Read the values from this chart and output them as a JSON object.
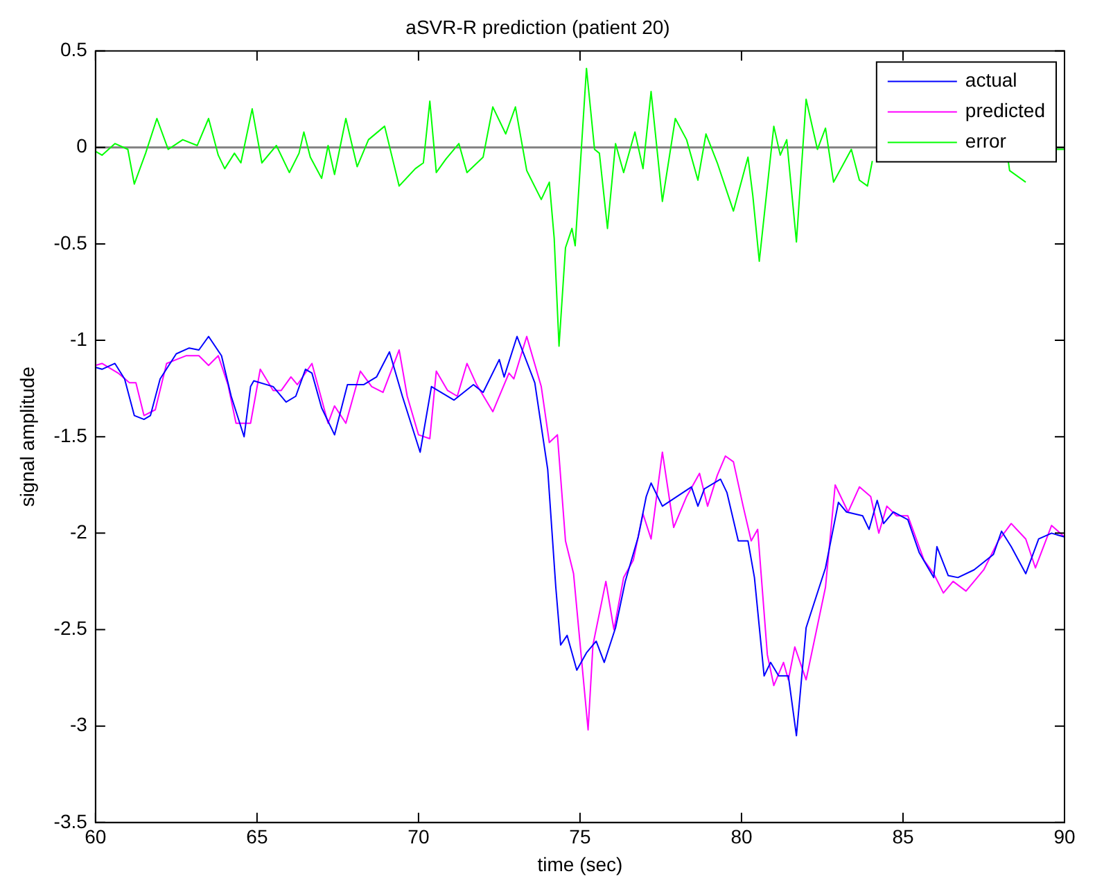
{
  "chart_data": {
    "type": "line",
    "title": "aSVR-R prediction (patient 20)",
    "xlabel": "time (sec)",
    "ylabel": "signal amplitude",
    "xlim": [
      60,
      90
    ],
    "xticks": [
      60,
      65,
      70,
      75,
      80,
      85,
      90
    ],
    "ylim": [
      -3.5,
      0.5
    ],
    "yticks": [
      -3.5,
      -3,
      -2.5,
      -2,
      -1.5,
      -1,
      -0.5,
      0,
      0.5
    ],
    "grid": false,
    "legend": "top right",
    "marker": "none",
    "line_style": "solid",
    "ref_lines": [
      {
        "axis": "y",
        "value": 0,
        "label": null,
        "color": "#808080"
      }
    ],
    "series": [
      {
        "name": "actual",
        "color": "#0000ff",
        "x": [
          60,
          60.2,
          60.6,
          60.9,
          61.2,
          61.5,
          61.7,
          62.0,
          62.5,
          62.9,
          63.2,
          63.5,
          63.9,
          64.2,
          64.6,
          64.8,
          64.9,
          65.5,
          65.9,
          66.2,
          66.5,
          66.7,
          67.0,
          67.4,
          67.8,
          68.3,
          68.7,
          69.1,
          69.5,
          70.05,
          70.4,
          71.1,
          71.7,
          72.0,
          72.5,
          72.65,
          73.05,
          73.6,
          74.0,
          74.25,
          74.4,
          74.6,
          74.9,
          75.2,
          75.5,
          75.75,
          76.1,
          76.4,
          76.8,
          77.05,
          77.2,
          77.55,
          78.45,
          78.65,
          78.85,
          79.35,
          79.55,
          79.9,
          80.2,
          80.4,
          80.7,
          80.9,
          81.15,
          81.45,
          81.7,
          82.0,
          82.6,
          83.0,
          83.25,
          83.75,
          83.95,
          84.2,
          84.4,
          84.7,
          85.15,
          85.5,
          85.95,
          86.05,
          86.4,
          86.7,
          87.2,
          87.8,
          88.05,
          88.35,
          88.8,
          89.2,
          89.6,
          90
        ],
        "values": [
          -1.14,
          -1.15,
          -1.12,
          -1.2,
          -1.39,
          -1.41,
          -1.39,
          -1.2,
          -1.07,
          -1.04,
          -1.05,
          -0.98,
          -1.08,
          -1.29,
          -1.5,
          -1.24,
          -1.21,
          -1.24,
          -1.32,
          -1.29,
          -1.15,
          -1.17,
          -1.35,
          -1.49,
          -1.23,
          -1.23,
          -1.19,
          -1.06,
          -1.29,
          -1.58,
          -1.24,
          -1.31,
          -1.23,
          -1.27,
          -1.1,
          -1.19,
          -0.98,
          -1.22,
          -1.67,
          -2.28,
          -2.58,
          -2.53,
          -2.71,
          -2.62,
          -2.56,
          -2.67,
          -2.49,
          -2.25,
          -2.02,
          -1.81,
          -1.74,
          -1.86,
          -1.76,
          -1.86,
          -1.77,
          -1.72,
          -1.79,
          -2.04,
          -2.04,
          -2.23,
          -2.74,
          -2.67,
          -2.74,
          -2.74,
          -3.05,
          -2.49,
          -2.18,
          -1.84,
          -1.89,
          -1.91,
          -1.98,
          -1.83,
          -1.95,
          -1.89,
          -1.93,
          -2.1,
          -2.23,
          -2.07,
          -2.22,
          -2.23,
          -2.19,
          -2.11,
          -1.99,
          -2.07,
          -2.21,
          -2.03,
          -2.0,
          -2.02
        ]
      },
      {
        "name": "predicted",
        "color": "#ff00ff",
        "x": [
          60,
          60.2,
          60.7,
          61.05,
          61.25,
          61.5,
          61.85,
          62.2,
          62.8,
          63.2,
          63.5,
          63.8,
          64.1,
          64.35,
          64.8,
          65.1,
          65.5,
          65.75,
          66.05,
          66.25,
          66.7,
          67.2,
          67.4,
          67.75,
          68.2,
          68.55,
          68.9,
          69.4,
          69.65,
          70.0,
          70.35,
          70.55,
          70.9,
          71.2,
          71.5,
          71.8,
          72.3,
          72.8,
          72.95,
          73.35,
          73.8,
          74.05,
          74.3,
          74.55,
          74.8,
          75.25,
          75.4,
          75.8,
          76.05,
          76.35,
          76.65,
          76.95,
          77.2,
          77.55,
          77.9,
          78.3,
          78.7,
          78.95,
          79.25,
          79.5,
          79.75,
          80.05,
          80.3,
          80.5,
          80.8,
          81.0,
          81.3,
          81.45,
          81.65,
          82.0,
          82.6,
          82.9,
          83.3,
          83.65,
          84.0,
          84.25,
          84.5,
          84.8,
          85.15,
          85.65,
          85.95,
          86.25,
          86.55,
          86.95,
          87.5,
          87.95,
          88.35,
          88.8,
          89.1,
          89.6,
          90
        ],
        "values": [
          -1.13,
          -1.12,
          -1.17,
          -1.22,
          -1.22,
          -1.39,
          -1.36,
          -1.12,
          -1.08,
          -1.08,
          -1.13,
          -1.08,
          -1.23,
          -1.43,
          -1.43,
          -1.15,
          -1.26,
          -1.26,
          -1.19,
          -1.23,
          -1.12,
          -1.43,
          -1.34,
          -1.43,
          -1.16,
          -1.24,
          -1.27,
          -1.05,
          -1.29,
          -1.49,
          -1.51,
          -1.16,
          -1.26,
          -1.29,
          -1.12,
          -1.23,
          -1.37,
          -1.17,
          -1.2,
          -0.98,
          -1.24,
          -1.53,
          -1.49,
          -2.04,
          -2.21,
          -3.02,
          -2.58,
          -2.25,
          -2.5,
          -2.23,
          -2.14,
          -1.9,
          -2.03,
          -1.58,
          -1.97,
          -1.81,
          -1.69,
          -1.86,
          -1.7,
          -1.6,
          -1.63,
          -1.86,
          -2.04,
          -1.98,
          -2.63,
          -2.79,
          -2.67,
          -2.76,
          -2.59,
          -2.76,
          -2.28,
          -1.75,
          -1.89,
          -1.76,
          -1.81,
          -2.0,
          -1.86,
          -1.91,
          -1.91,
          -2.14,
          -2.21,
          -2.31,
          -2.25,
          -2.3,
          -2.19,
          -2.04,
          -1.95,
          -2.03,
          -2.18,
          -1.96,
          -2.02
        ]
      },
      {
        "name": "error",
        "color": "#00ff00",
        "x": [
          60,
          60.2,
          60.6,
          61.0,
          61.2,
          61.55,
          61.9,
          62.25,
          62.7,
          63.15,
          63.5,
          63.8,
          64.0,
          64.3,
          64.5,
          64.85,
          65.15,
          65.6,
          66.0,
          66.3,
          66.45,
          66.65,
          67.0,
          67.2,
          67.4,
          67.75,
          68.1,
          68.45,
          68.95,
          69.4,
          69.9,
          70.15,
          70.35,
          70.55,
          70.85,
          71.25,
          71.5,
          72.0,
          72.3,
          72.7,
          73.0,
          73.35,
          73.8,
          74.05,
          74.2,
          74.35,
          74.55,
          74.75,
          74.85,
          75.2,
          75.45,
          75.6,
          75.85,
          76.1,
          76.35,
          76.7,
          76.95,
          77.2,
          77.55,
          77.95,
          78.3,
          78.65,
          78.9,
          79.25,
          79.75,
          80.2,
          80.35,
          80.55,
          81.0,
          81.2,
          81.4,
          81.7,
          82.0,
          82.35,
          82.6,
          82.85,
          83.4,
          83.65,
          83.9,
          84.05,
          86.0,
          88.25,
          88.3,
          88.8,
          88.9,
          89.75,
          90
        ],
        "values": [
          -0.02,
          -0.04,
          0.02,
          -0.01,
          -0.19,
          -0.03,
          0.15,
          -0.01,
          0.04,
          0.01,
          0.15,
          -0.04,
          -0.11,
          -0.03,
          -0.08,
          0.2,
          -0.08,
          0.01,
          -0.13,
          -0.03,
          0.08,
          -0.05,
          -0.16,
          0.01,
          -0.14,
          0.15,
          -0.1,
          0.04,
          0.11,
          -0.2,
          -0.11,
          -0.08,
          0.24,
          -0.13,
          -0.06,
          0.02,
          -0.13,
          -0.05,
          0.21,
          0.07,
          0.21,
          -0.12,
          -0.27,
          -0.18,
          -0.47,
          -1.03,
          -0.52,
          -0.42,
          -0.51,
          0.41,
          -0.01,
          -0.03,
          -0.42,
          0.02,
          -0.13,
          0.08,
          -0.11,
          0.29,
          -0.28,
          0.15,
          0.04,
          -0.17,
          0.07,
          -0.08,
          -0.33,
          -0.05,
          -0.25,
          -0.59,
          0.11,
          -0.04,
          0.04,
          -0.49,
          0.25,
          -0.01,
          0.1,
          -0.18,
          -0.01,
          -0.17,
          -0.2,
          -0.07,
          null,
          -0.06,
          -0.12,
          -0.18,
          null,
          -0.01,
          -0.01
        ]
      }
    ]
  }
}
